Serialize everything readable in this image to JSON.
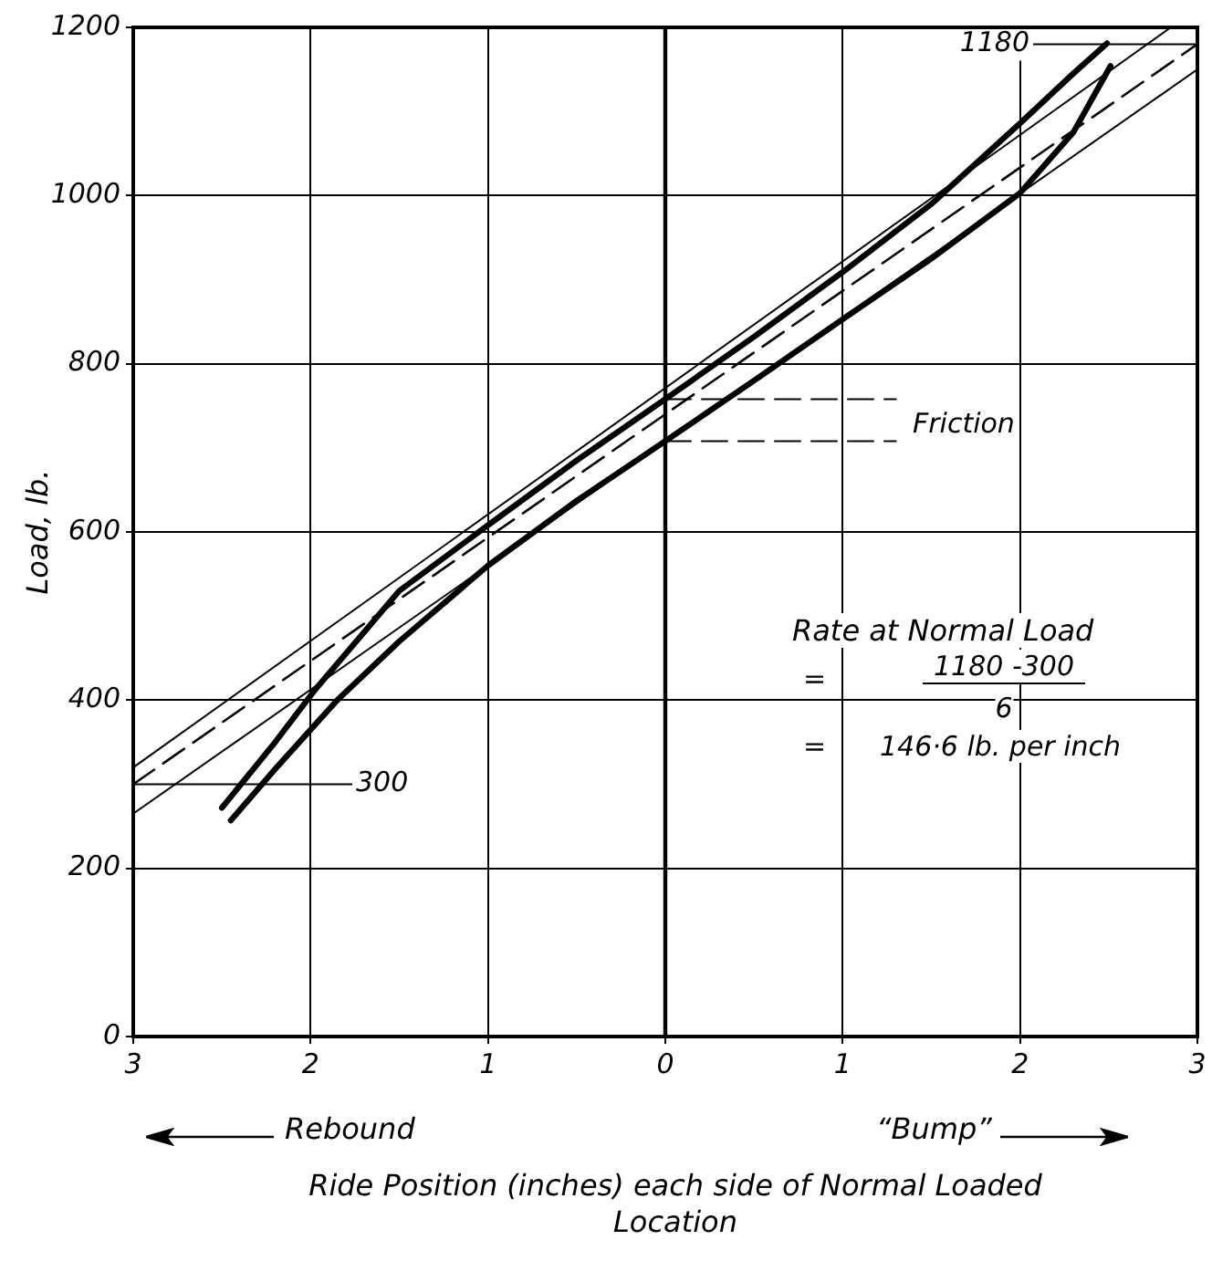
{
  "chart_data": {
    "type": "line",
    "xlabel": "Ride Position (inches) each side of Normal Loaded Location",
    "ylabel": "Load, lb.",
    "xlim": [
      -3,
      3
    ],
    "ylim": [
      0,
      1200
    ],
    "xticks": [
      {
        "value": -3,
        "label": "3"
      },
      {
        "value": -2,
        "label": "2"
      },
      {
        "value": -1,
        "label": "1"
      },
      0,
      1,
      2,
      3
    ],
    "yticks": [
      0,
      200,
      400,
      600,
      800,
      1000,
      1200
    ],
    "grid": true,
    "legend": false,
    "marker": "none",
    "series": [
      {
        "color": "#000000",
        "x": [
          -2.5,
          -2.2,
          -1.98,
          -1.5,
          -1,
          -0.5,
          0,
          0.5,
          1,
          1.5,
          2,
          2.3,
          2.49
        ],
        "values": [
          272,
          350,
          411,
          530,
          608,
          685,
          758,
          832,
          909,
          990,
          1086,
          1145,
          1181
        ]
      },
      {
        "color": "#000000",
        "x": [
          -2.45,
          -2.2,
          -1.85,
          -1.5,
          -1,
          -0.5,
          0,
          0.5,
          1,
          1.5,
          2,
          2.3,
          2.51
        ],
        "values": [
          257,
          318,
          400,
          470,
          560,
          637,
          708,
          780,
          853,
          925,
          1003,
          1075,
          1154
        ]
      },
      {
        "color": "#000000",
        "line_style": "dashed",
        "x": [
          -3,
          3
        ],
        "values": [
          300,
          1180
        ]
      },
      {
        "color": "#000000",
        "x": [
          -3,
          2.85
        ],
        "values": [
          320,
          1200
        ]
      },
      {
        "color": "#000000",
        "x": [
          -3,
          3
        ],
        "values": [
          265,
          1150
        ]
      },
      {
        "color": "#000000",
        "line_style": "dashed",
        "x": [
          0,
          1.3
        ],
        "values": [
          758,
          758
        ]
      },
      {
        "color": "#000000",
        "line_style": "dashed",
        "x": [
          0,
          1.3
        ],
        "values": [
          708,
          708
        ]
      }
    ],
    "ref_lines": [
      {
        "axis": "x",
        "value": 0,
        "color": "#000000"
      }
    ],
    "annotations": [
      {
        "text": "1180",
        "x": 3,
        "y": 1180
      },
      {
        "text": "300",
        "x": -3,
        "y": 300
      },
      "Friction",
      "Rate at Normal Load",
      "=",
      "1180 -300",
      "6",
      "=",
      "146·6 lb. per inch",
      "Rebound",
      "“Bump”"
    ]
  }
}
